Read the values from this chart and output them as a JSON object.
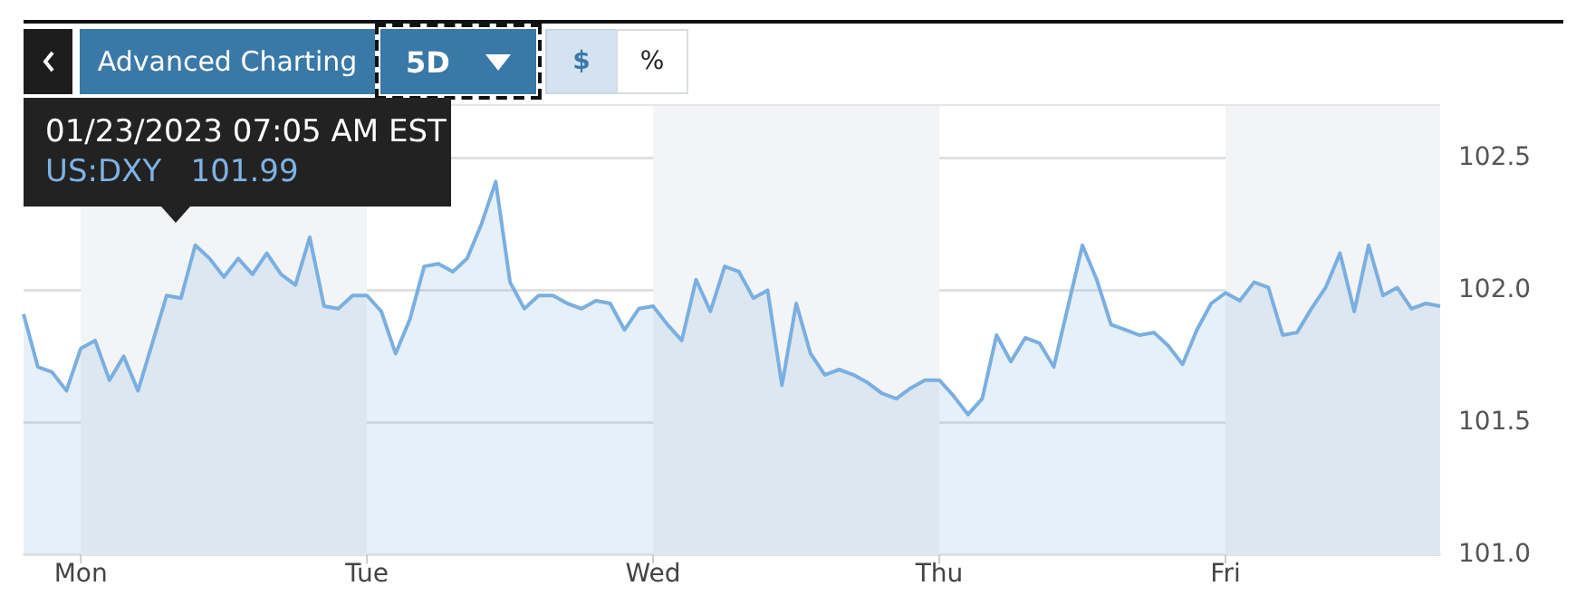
{
  "chart_data": {
    "type": "area",
    "categories": [
      null,
      null,
      null,
      null,
      "Mon",
      null,
      null,
      null,
      null,
      null,
      null,
      null,
      null,
      null,
      null,
      null,
      null,
      null,
      null,
      null,
      null,
      null,
      null,
      null,
      "Tue",
      null,
      null,
      null,
      null,
      null,
      null,
      null,
      null,
      null,
      null,
      null,
      null,
      null,
      null,
      null,
      null,
      null,
      null,
      null,
      "Wed",
      null,
      null,
      null,
      null,
      null,
      null,
      null,
      null,
      null,
      null,
      null,
      null,
      null,
      null,
      null,
      null,
      null,
      null,
      null,
      "Thu",
      null,
      null,
      null,
      null,
      null,
      null,
      null,
      null,
      null,
      null,
      null,
      null,
      null,
      null,
      null,
      null,
      null,
      null,
      null,
      "Fri",
      null,
      null,
      null,
      null,
      null,
      null,
      null,
      null,
      null,
      null,
      null,
      null,
      null,
      null,
      null
    ],
    "series": [
      {
        "color": "#7aafe0",
        "values": [
          101.91,
          101.71,
          101.69,
          101.62,
          101.78,
          101.81,
          101.66,
          101.75,
          101.62,
          101.8,
          101.98,
          101.97,
          102.17,
          102.12,
          102.05,
          102.12,
          102.06,
          102.14,
          102.06,
          102.02,
          102.2,
          101.94,
          101.93,
          101.98,
          101.98,
          101.92,
          101.76,
          101.89,
          102.09,
          102.1,
          102.07,
          102.12,
          102.25,
          102.41,
          102.03,
          101.93,
          101.98,
          101.98,
          101.95,
          101.93,
          101.96,
          101.95,
          101.85,
          101.93,
          101.94,
          101.87,
          101.81,
          102.04,
          101.92,
          102.09,
          102.07,
          101.97,
          102.0,
          101.64,
          101.95,
          101.76,
          101.68,
          101.7,
          101.68,
          101.65,
          101.61,
          101.59,
          101.63,
          101.66,
          101.66,
          101.6,
          101.53,
          101.59,
          101.83,
          101.73,
          101.82,
          101.8,
          101.71,
          101.94,
          102.17,
          102.04,
          101.87,
          101.85,
          101.83,
          101.84,
          101.79,
          101.72,
          101.85,
          101.95,
          101.99,
          101.96,
          102.03,
          102.01,
          101.83,
          101.84,
          101.93,
          102.01,
          102.14,
          101.92,
          102.17,
          101.98,
          102.01,
          101.93,
          101.95,
          101.94
        ]
      }
    ],
    "ylim": [
      101.0,
      102.7
    ],
    "yticks": [
      {
        "value": 101.0,
        "label": "101.0"
      },
      {
        "value": 101.5,
        "label": "101.5"
      },
      {
        "value": 102.0,
        "label": "102.0"
      },
      {
        "value": 102.5,
        "label": "102.5"
      }
    ],
    "grid": "y",
    "legend": false,
    "marker": "none",
    "annotations": [
      "Advanced Charting",
      "5D",
      "$",
      "%",
      "01/23/2023 07:05 AM EST\nUS:DXY   101.99"
    ]
  }
}
